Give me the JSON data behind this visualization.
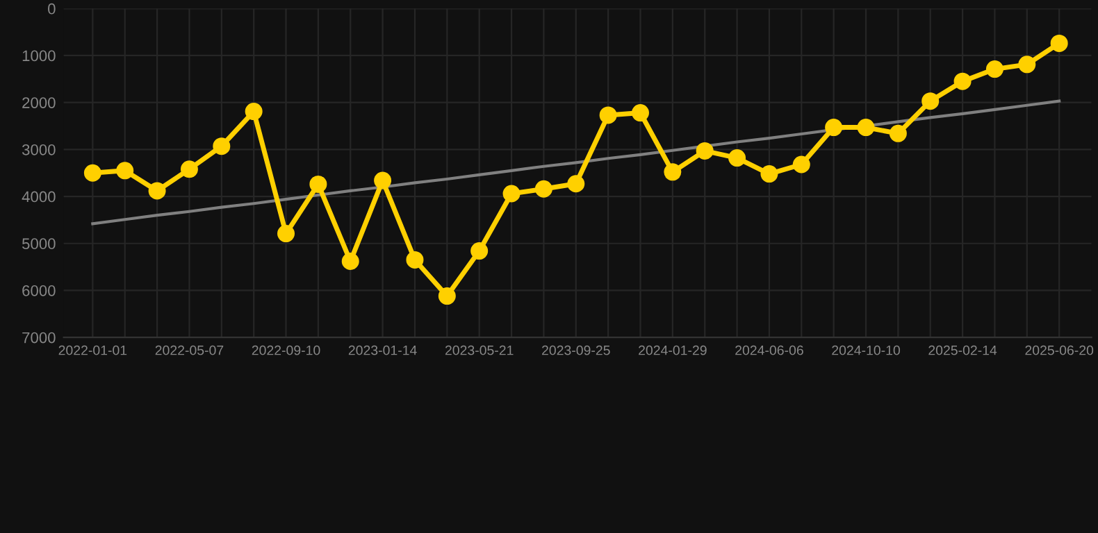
{
  "chart_data": {
    "type": "line",
    "categories": [
      "2022-01-01",
      null,
      null,
      "2022-05-07",
      null,
      null,
      "2022-09-10",
      null,
      null,
      "2023-01-14",
      null,
      null,
      "2023-05-21",
      null,
      null,
      "2023-09-25",
      null,
      null,
      "2024-01-29",
      null,
      null,
      "2024-06-06",
      null,
      null,
      "2024-10-10",
      null,
      null,
      "2025-02-14",
      null,
      null,
      "2025-06-20"
    ],
    "series": [
      {
        "color": "#ffd000",
        "marker": "circle",
        "values": [
          3500,
          3450,
          3880,
          3420,
          2930,
          2190,
          4790,
          3740,
          5380,
          3660,
          5350,
          6120,
          5160,
          3940,
          3840,
          3730,
          2270,
          2220,
          3480,
          3030,
          3180,
          3520,
          3320,
          2530,
          2530,
          2660,
          1970,
          1550,
          1290,
          1190,
          740
        ]
      },
      {
        "type": "line",
        "color": "#808080",
        "marker": "none",
        "values": [
          4580,
          4490,
          4400,
          4320,
          4230,
          4150,
          4060,
          3970,
          3880,
          3800,
          3710,
          3630,
          3540,
          3450,
          3360,
          3280,
          3190,
          3110,
          3020,
          2930,
          2840,
          2760,
          2670,
          2580,
          2500,
          2410,
          2320,
          2240,
          2150,
          2060,
          1970
        ]
      }
    ],
    "ylim": [
      7000,
      0
    ],
    "yticks": [
      0,
      1000,
      2000,
      3000,
      4000,
      5000,
      6000,
      7000
    ],
    "grid": true
  }
}
